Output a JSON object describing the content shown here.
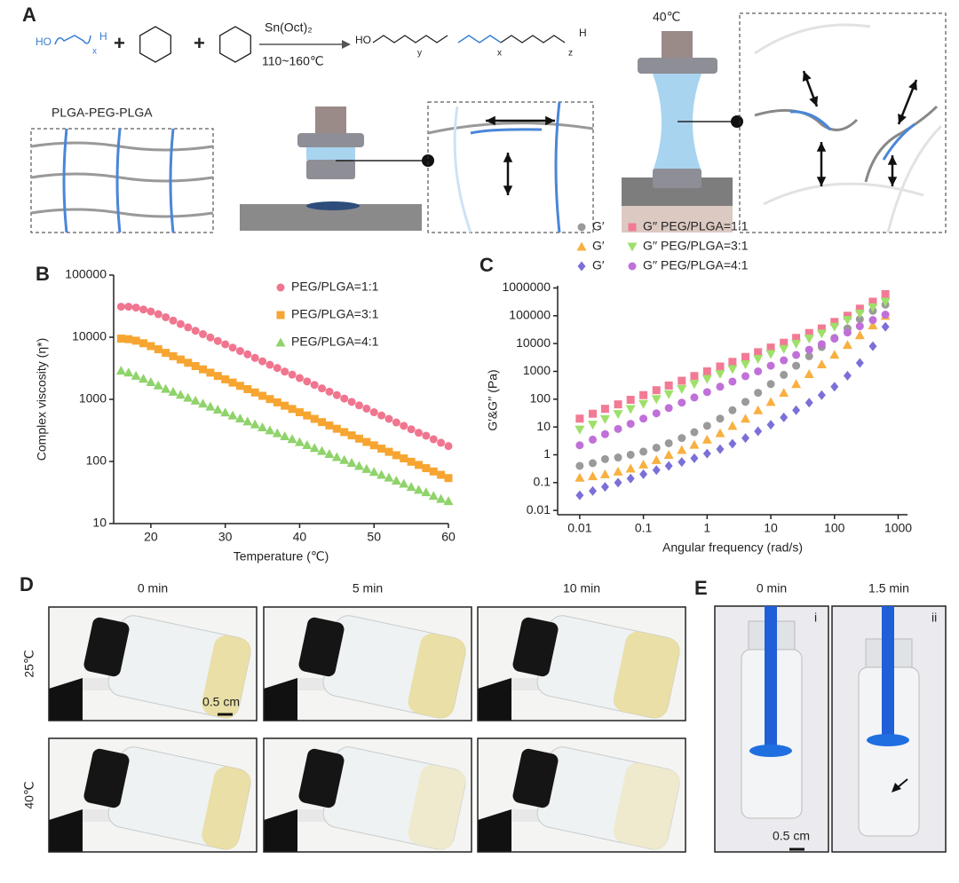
{
  "scheme": {
    "label": "A",
    "reagent_start": "HO",
    "reagent_sub": "x",
    "reagent_end": "H",
    "plus": "+",
    "catalyst": "Sn(Oct)₂",
    "conditions": "110~160℃",
    "product_start": "HO",
    "product_subs": [
      "y",
      "x",
      "z"
    ],
    "product_end": "H",
    "polymer_name": "PLGA-PEG-PLGA",
    "temperature": "40℃"
  },
  "chart_data": [
    {
      "type": "scatter",
      "panel_label": "B",
      "x_label": "Temperature (℃)",
      "y_label": "Complex viscosity (η*)",
      "xlim": [
        15,
        60
      ],
      "xticks": [
        20,
        30,
        40,
        50,
        60
      ],
      "ylim": [
        10,
        100000
      ],
      "yticks": [
        10,
        100,
        1000,
        10000,
        100000
      ],
      "yscale": "log",
      "legend": "upper right",
      "x": [
        16,
        17,
        18,
        19,
        20,
        21,
        22,
        23,
        24,
        25,
        26,
        27,
        28,
        29,
        30,
        31,
        32,
        33,
        34,
        35,
        36,
        37,
        38,
        39,
        40,
        41,
        42,
        43,
        44,
        45,
        46,
        47,
        48,
        49,
        50,
        51,
        52,
        53,
        54,
        55,
        56,
        57,
        58,
        59,
        60
      ],
      "series": [
        {
          "name": "PEG/PLGA=1:1",
          "color": "#f0758f",
          "marker": "circle",
          "values": [
            31000,
            31000,
            30000,
            28000,
            26000,
            23500,
            21000,
            18500,
            16300,
            14400,
            12700,
            11200,
            9900,
            8700,
            7700,
            6800,
            6000,
            5300,
            4650,
            4100,
            3600,
            3200,
            2800,
            2500,
            2200,
            1940,
            1710,
            1500,
            1330,
            1170,
            1030,
            910,
            800,
            710,
            620,
            550,
            485,
            425,
            375,
            330,
            290,
            260,
            228,
            200,
            177
          ]
        },
        {
          "name": "PEG/PLGA=3:1",
          "color": "#f7a531",
          "marker": "square",
          "values": [
            9500,
            9300,
            8800,
            8000,
            7200,
            6400,
            5600,
            4950,
            4380,
            3880,
            3430,
            3040,
            2690,
            2380,
            2100,
            1860,
            1650,
            1460,
            1290,
            1140,
            1010,
            895,
            790,
            700,
            620,
            550,
            485,
            430,
            380,
            336,
            297,
            263,
            233,
            206,
            182,
            161,
            143,
            126,
            112,
            99,
            88,
            78,
            69,
            61,
            54
          ]
        },
        {
          "name": "PEG/PLGA=4:1",
          "color": "#8fd36b",
          "marker": "triangle",
          "values": [
            2900,
            2700,
            2400,
            2150,
            1900,
            1680,
            1480,
            1330,
            1190,
            1065,
            955,
            855,
            766,
            686,
            615,
            551,
            494,
            442,
            396,
            355,
            318,
            285,
            255,
            229,
            205,
            184,
            165,
            148,
            132,
            118,
            106,
            95,
            85,
            76,
            68,
            61,
            55,
            49,
            44,
            39,
            35,
            32,
            28,
            25,
            23
          ]
        }
      ]
    },
    {
      "type": "scatter",
      "panel_label": "C",
      "x_label": "Angular frequency (rad/s)",
      "y_label": "G′&G′′ (Pa)",
      "xlim": [
        0.0045,
        1400
      ],
      "xticks": [
        0.01,
        0.1,
        1,
        10,
        100,
        1000
      ],
      "xscale": "log",
      "ylim": [
        0.007,
        1200000
      ],
      "yticks": [
        0.01,
        0.1,
        1,
        10,
        100,
        1000,
        10000,
        100000,
        1000000
      ],
      "yscale": "log",
      "legend": "top",
      "x": [
        0.01,
        0.016,
        0.025,
        0.04,
        0.063,
        0.1,
        0.16,
        0.25,
        0.4,
        0.63,
        1,
        1.6,
        2.5,
        4,
        6.3,
        10,
        16,
        25,
        40,
        63,
        100,
        160,
        250,
        400,
        630
      ],
      "series": [
        {
          "name": "G′",
          "color": "#9a9a9a",
          "marker": "circle",
          "values": [
            0.4,
            0.5,
            0.7,
            0.8,
            1,
            1.3,
            1.8,
            2.6,
            4,
            6.5,
            11,
            20,
            40,
            80,
            170,
            350,
            750,
            1600,
            3500,
            7500,
            16000,
            35000,
            75000,
            150000,
            250000
          ]
        },
        {
          "name": "G′′ PEG/PLGA=1:1",
          "color": "#f27a95",
          "marker": "square",
          "values": [
            20,
            30,
            45,
            65,
            95,
            140,
            210,
            310,
            460,
            680,
            1000,
            1500,
            2200,
            3300,
            4900,
            7200,
            10700,
            16000,
            24000,
            35000,
            60000,
            100000,
            180000,
            320000,
            600000
          ]
        },
        {
          "name": "G′",
          "color": "#f8b040",
          "marker": "triangle",
          "values": [
            0.15,
            0.17,
            0.2,
            0.25,
            0.32,
            0.45,
            0.65,
            1,
            1.5,
            2.3,
            3.5,
            6,
            11,
            20,
            40,
            80,
            170,
            350,
            800,
            1800,
            4000,
            9000,
            20000,
            45000,
            100000
          ]
        },
        {
          "name": "G′′ PEG/PLGA=3:1",
          "color": "#9ee06a",
          "marker": "triangle-down",
          "values": [
            8,
            12,
            19,
            29,
            44,
            67,
            100,
            150,
            230,
            350,
            530,
            800,
            1200,
            1800,
            2800,
            4200,
            6400,
            9700,
            15000,
            23000,
            40000,
            70000,
            120000,
            200000,
            320000
          ]
        },
        {
          "name": "G′",
          "color": "#7b70d8",
          "marker": "diamond",
          "values": [
            0.035,
            0.05,
            0.07,
            0.1,
            0.14,
            0.2,
            0.28,
            0.4,
            0.55,
            0.75,
            1.1,
            1.6,
            2.5,
            4,
            7,
            12,
            22,
            40,
            75,
            140,
            280,
            700,
            2000,
            8000,
            40000
          ]
        },
        {
          "name": "G′′ PEG/PLGA=4:1",
          "color": "#c070d8",
          "marker": "circle",
          "values": [
            2.2,
            3.5,
            5.5,
            8.5,
            13,
            20,
            31,
            48,
            75,
            115,
            180,
            280,
            430,
            670,
            1000,
            1600,
            2500,
            3900,
            6000,
            9500,
            15000,
            25000,
            42000,
            70000,
            110000
          ]
        }
      ]
    }
  ],
  "photos": {
    "label": "D",
    "times": [
      "0 min",
      "5 min",
      "10 min"
    ],
    "temperatures": [
      "25℃",
      "40℃"
    ],
    "scale_bar": "0.5 cm"
  },
  "vials": {
    "label": "E",
    "times": [
      "0 min",
      "1.5 min"
    ],
    "numerals": [
      "i",
      "ii"
    ],
    "scale_bar": "0.5 cm"
  }
}
